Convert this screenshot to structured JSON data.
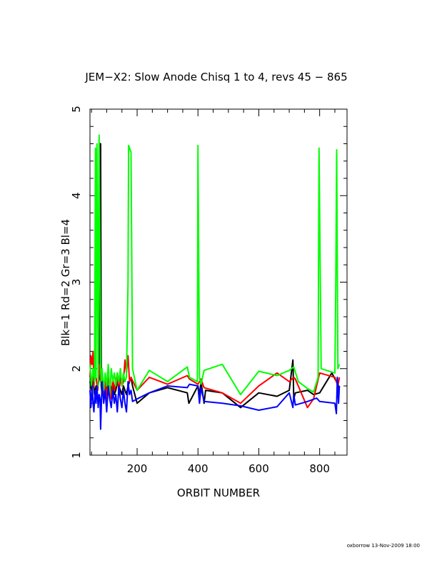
{
  "chart_data": {
    "type": "line",
    "title": "JEM−X2: Slow Anode Chisq 1 to 4, revs 45 − 865",
    "xlabel": "ORBIT NUMBER",
    "ylabel": "Blk=1 Rd=2 Gr=3 Bl=4",
    "xlim": [
      45,
      890
    ],
    "ylim": [
      1,
      5
    ],
    "xticks": [
      200,
      400,
      600,
      800
    ],
    "yticks": [
      1,
      2,
      3,
      4,
      5
    ],
    "grid": false,
    "series": [
      {
        "name": "Blk=1",
        "color": "#000000",
        "x": [
          45,
          50,
          55,
          60,
          65,
          70,
          75,
          78,
          80,
          82,
          85,
          90,
          95,
          100,
          105,
          110,
          115,
          120,
          125,
          130,
          135,
          140,
          145,
          150,
          155,
          160,
          165,
          170,
          175,
          180,
          185,
          200,
          240,
          300,
          365,
          370,
          400,
          405,
          410,
          420,
          425,
          480,
          540,
          600,
          660,
          700,
          712,
          715,
          720,
          760,
          780,
          800,
          840,
          855,
          860,
          865
        ],
        "y": [
          1.85,
          1.75,
          1.9,
          1.7,
          1.8,
          1.75,
          1.9,
          4.6,
          4.6,
          1.8,
          1.7,
          1.85,
          1.75,
          1.8,
          1.7,
          1.85,
          1.75,
          1.8,
          1.7,
          1.75,
          1.85,
          1.8,
          1.75,
          1.7,
          1.8,
          1.75,
          1.7,
          1.8,
          1.85,
          1.9,
          1.8,
          1.6,
          1.72,
          1.78,
          1.72,
          1.6,
          1.8,
          1.7,
          1.85,
          1.6,
          1.75,
          1.72,
          1.55,
          1.72,
          1.68,
          1.75,
          2.1,
          1.65,
          1.72,
          1.75,
          1.7,
          1.72,
          1.95,
          1.85,
          1.82,
          1.78
        ]
      },
      {
        "name": "Rd=2",
        "color": "#ff0000",
        "x": [
          45,
          48,
          52,
          55,
          58,
          62,
          65,
          70,
          75,
          80,
          85,
          90,
          95,
          100,
          105,
          110,
          115,
          120,
          125,
          130,
          135,
          140,
          145,
          150,
          155,
          160,
          165,
          170,
          175,
          180,
          200,
          240,
          300,
          365,
          372,
          400,
          410,
          420,
          480,
          540,
          600,
          660,
          700,
          715,
          720,
          760,
          780,
          800,
          850,
          860,
          865
        ],
        "y": [
          1.9,
          2.15,
          2.05,
          2.2,
          1.8,
          2.1,
          1.9,
          1.75,
          2.05,
          1.85,
          1.95,
          1.7,
          1.9,
          1.6,
          1.95,
          1.8,
          1.65,
          1.9,
          1.75,
          1.85,
          1.95,
          1.7,
          1.9,
          1.8,
          1.85,
          2.1,
          1.95,
          2.15,
          1.85,
          1.9,
          1.75,
          1.9,
          1.82,
          1.92,
          1.88,
          1.82,
          1.88,
          1.78,
          1.72,
          1.6,
          1.8,
          1.95,
          1.85,
          1.9,
          1.88,
          1.55,
          1.65,
          1.95,
          1.9,
          1.8,
          1.9
        ]
      },
      {
        "name": "Gr=3",
        "color": "#00ff00",
        "x": [
          45,
          50,
          55,
          60,
          63,
          65,
          68,
          72,
          75,
          80,
          82,
          85,
          90,
          95,
          100,
          105,
          110,
          115,
          120,
          125,
          130,
          135,
          140,
          145,
          150,
          155,
          160,
          165,
          170,
          172,
          175,
          180,
          185,
          200,
          240,
          300,
          365,
          372,
          398,
          400,
          405,
          410,
          420,
          480,
          540,
          600,
          660,
          700,
          715,
          730,
          760,
          780,
          795,
          798,
          805,
          850,
          853,
          856,
          860,
          865
        ],
        "y": [
          2.05,
          1.8,
          2.0,
          1.85,
          4.55,
          1.9,
          4.6,
          1.8,
          4.7,
          2.0,
          1.85,
          2.0,
          1.75,
          1.95,
          1.8,
          2.05,
          1.7,
          2.0,
          1.85,
          1.95,
          1.8,
          1.95,
          1.85,
          2.0,
          1.8,
          1.95,
          1.85,
          1.9,
          3.0,
          4.58,
          4.55,
          4.5,
          2.0,
          1.75,
          1.98,
          1.85,
          2.02,
          1.9,
          1.85,
          4.58,
          1.9,
          1.82,
          1.98,
          2.05,
          1.7,
          1.97,
          1.92,
          1.98,
          2.02,
          1.85,
          1.77,
          1.73,
          1.9,
          4.55,
          2.0,
          1.95,
          2.9,
          4.53,
          2.0,
          2.05
        ]
      },
      {
        "name": "Bl=4",
        "color": "#0000ff",
        "x": [
          45,
          48,
          52,
          55,
          58,
          62,
          65,
          68,
          72,
          75,
          78,
          80,
          82,
          85,
          90,
          95,
          100,
          105,
          110,
          115,
          120,
          125,
          130,
          135,
          140,
          145,
          150,
          155,
          160,
          165,
          170,
          175,
          180,
          185,
          200,
          240,
          300,
          365,
          372,
          400,
          405,
          410,
          420,
          480,
          540,
          600,
          660,
          700,
          712,
          715,
          720,
          760,
          790,
          800,
          850,
          855,
          858,
          862,
          865
        ],
        "y": [
          1.75,
          1.55,
          1.8,
          1.6,
          1.5,
          1.75,
          1.6,
          1.8,
          1.55,
          1.7,
          1.65,
          1.3,
          1.55,
          1.85,
          1.6,
          1.75,
          1.5,
          1.8,
          1.65,
          1.55,
          1.75,
          1.6,
          1.7,
          1.5,
          1.8,
          1.65,
          1.55,
          1.75,
          1.6,
          1.5,
          1.85,
          1.7,
          1.75,
          1.62,
          1.65,
          1.72,
          1.8,
          1.78,
          1.82,
          1.8,
          1.6,
          1.78,
          1.62,
          1.6,
          1.57,
          1.52,
          1.56,
          1.72,
          1.55,
          1.7,
          1.58,
          1.62,
          1.66,
          1.62,
          1.6,
          1.48,
          1.9,
          1.6,
          1.8
        ]
      }
    ]
  },
  "footer": "oxborrow 13-Nov-2009 18:00"
}
